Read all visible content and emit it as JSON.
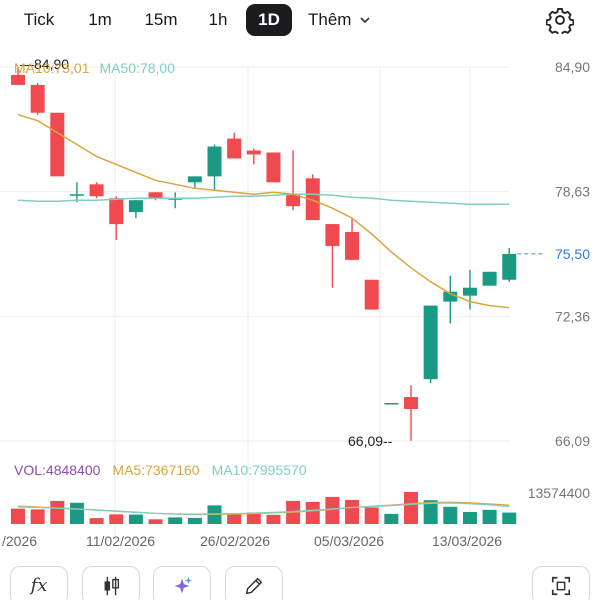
{
  "header": {
    "tabs": [
      {
        "label": "Tick"
      },
      {
        "label": "1m"
      },
      {
        "label": "15m"
      },
      {
        "label": "1h"
      },
      {
        "label": "1D",
        "active": true
      }
    ],
    "more_label": "Thêm",
    "settings_icon": "gear-icon"
  },
  "indicators": {
    "ma10_label": "MA10:73,01",
    "ma50_label": "MA50:78,00",
    "vol_label": "VOL:4848400",
    "vol_ma5_label": "MA5:7367160",
    "vol_ma10_label": "MA10:7995570"
  },
  "colors": {
    "up": "#1a9a82",
    "down": "#ef4a4f",
    "ma10": "#d9a53e",
    "ma50": "#7fcfc6",
    "vol_label": "#8b4cae",
    "grid": "#eeeeee"
  },
  "chart_data": {
    "type": "candlestick",
    "price_axis": {
      "ticks": [
        "84,90",
        "78,63",
        "72,36",
        "66,09"
      ],
      "ylim": [
        66.09,
        84.9
      ]
    },
    "current_price": "75,50",
    "high_marker": "84,90",
    "low_marker": "66,09",
    "volume_axis_max": "13574400",
    "x_ticks": [
      "/2026",
      "11/02/2026",
      "26/02/2026",
      "05/03/2026",
      "13/03/2026"
    ],
    "candles": [
      {
        "o": 84.5,
        "h": 84.9,
        "l": 84.0,
        "c": 84.0,
        "v": 6500000
      },
      {
        "o": 84.0,
        "h": 84.1,
        "l": 82.5,
        "c": 82.6,
        "v": 6200000
      },
      {
        "o": 82.6,
        "h": 82.6,
        "l": 79.4,
        "c": 79.4,
        "v": 9800000
      },
      {
        "o": 78.5,
        "h": 79.1,
        "l": 78.1,
        "c": 78.5,
        "v": 9000000
      },
      {
        "o": 79.0,
        "h": 79.1,
        "l": 78.3,
        "c": 78.4,
        "v": 2500000
      },
      {
        "o": 78.3,
        "h": 78.4,
        "l": 76.2,
        "c": 77.0,
        "v": 4100000
      },
      {
        "o": 77.6,
        "h": 78.2,
        "l": 77.3,
        "c": 78.2,
        "v": 4000000
      },
      {
        "o": 78.6,
        "h": 78.6,
        "l": 78.2,
        "c": 78.3,
        "v": 2000000
      },
      {
        "o": 78.3,
        "h": 78.6,
        "l": 77.8,
        "c": 78.3,
        "v": 2800000
      },
      {
        "o": 79.1,
        "h": 79.4,
        "l": 78.8,
        "c": 79.4,
        "v": 2600000
      },
      {
        "o": 79.4,
        "h": 81.0,
        "l": 78.7,
        "c": 80.9,
        "v": 7900000
      },
      {
        "o": 81.3,
        "h": 81.6,
        "l": 80.3,
        "c": 80.3,
        "v": 4500000
      },
      {
        "o": 80.7,
        "h": 80.8,
        "l": 80.0,
        "c": 80.5,
        "v": 4900000
      },
      {
        "o": 80.6,
        "h": 80.6,
        "l": 79.1,
        "c": 79.1,
        "v": 3900000
      },
      {
        "o": 78.5,
        "h": 80.7,
        "l": 77.7,
        "c": 77.9,
        "v": 9800000
      },
      {
        "o": 79.3,
        "h": 79.5,
        "l": 77.2,
        "c": 77.2,
        "v": 9400000
      },
      {
        "o": 77.0,
        "h": 77.0,
        "l": 73.8,
        "c": 75.9,
        "v": 11500000
      },
      {
        "o": 76.6,
        "h": 77.3,
        "l": 75.2,
        "c": 75.2,
        "v": 10200000
      },
      {
        "o": 74.2,
        "h": 74.2,
        "l": 72.7,
        "c": 72.7,
        "v": 7000000
      },
      {
        "o": 68.0,
        "h": 68.0,
        "l": 68.0,
        "c": 68.0,
        "v": 4300000
      },
      {
        "o": 68.3,
        "h": 68.9,
        "l": 66.1,
        "c": 67.7,
        "v": 13574400
      },
      {
        "o": 69.2,
        "h": 72.9,
        "l": 69.0,
        "c": 72.9,
        "v": 10100000
      },
      {
        "o": 73.1,
        "h": 74.4,
        "l": 72.0,
        "c": 73.6,
        "v": 7300000
      },
      {
        "o": 73.4,
        "h": 74.7,
        "l": 72.7,
        "c": 73.8,
        "v": 5100000
      },
      {
        "o": 73.9,
        "h": 74.6,
        "l": 73.9,
        "c": 74.6,
        "v": 6000000
      },
      {
        "o": 74.2,
        "h": 75.8,
        "l": 74.1,
        "c": 75.5,
        "v": 4848400
      }
    ],
    "ma10": [
      82.5,
      82.2,
      81.6,
      81.0,
      80.4,
      80.0,
      79.6,
      79.2,
      79.0,
      78.8,
      78.7,
      78.6,
      78.5,
      78.6,
      78.5,
      78.2,
      77.8,
      77.3,
      76.5,
      75.6,
      74.8,
      74.1,
      73.5,
      73.1,
      72.9,
      72.8
    ],
    "ma50": [
      78.2,
      78.15,
      78.15,
      78.2,
      78.2,
      78.25,
      78.3,
      78.3,
      78.3,
      78.3,
      78.35,
      78.4,
      78.4,
      78.45,
      78.5,
      78.5,
      78.45,
      78.35,
      78.3,
      78.2,
      78.15,
      78.1,
      78.05,
      78.0,
      78.0,
      78.0
    ],
    "vol_ma_a": [
      7600000,
      7200000,
      6800000,
      6400000,
      6000000,
      5500000,
      5000000,
      4500000,
      4200000,
      4000000,
      4100000,
      4200000,
      4400000,
      4700000,
      5000000,
      5500000,
      6200000,
      7000000,
      7500000,
      8000000,
      8600000,
      9100000,
      9200000,
      9000000,
      8500000,
      8000000
    ],
    "vol_ma_b": [
      7200000,
      7000000,
      6700000,
      6300000,
      5900000,
      5400000,
      4900000,
      4500000,
      4300000,
      4200000,
      4300000,
      4400000,
      4600000,
      4900000,
      5300000,
      5800000,
      6400000,
      7000000,
      7400000,
      7800000,
      8300000,
      8800000,
      8900000,
      8600000,
      8100000,
      7400000
    ]
  },
  "toolbar": {
    "items": [
      {
        "name": "fx-button",
        "label": "fx"
      },
      {
        "name": "candle-type-button",
        "icon": "candlestick-icon"
      },
      {
        "name": "ai-button",
        "icon": "sparkle-icon"
      },
      {
        "name": "draw-button",
        "icon": "pencil-icon"
      },
      {
        "name": "fullscreen-button",
        "icon": "fullscreen-icon"
      }
    ]
  }
}
